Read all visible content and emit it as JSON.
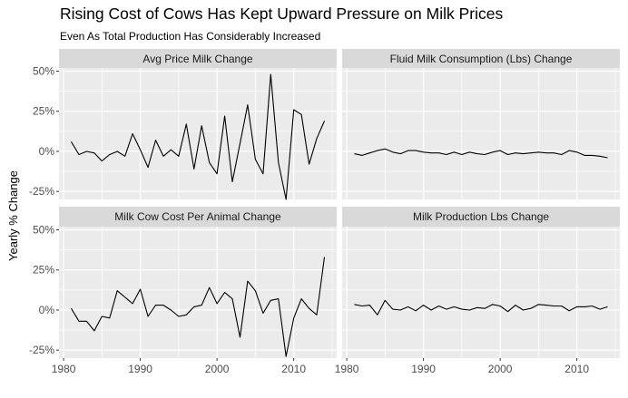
{
  "title": "Rising Cost of Cows Has Kept Upward Pressure on Milk Prices",
  "subtitle": "Even As Total Production Has Considerably Increased",
  "ylabel": "Yearly % Change",
  "chart_data": {
    "type": "line",
    "facet_layout": "2x2 grid, shared axes",
    "x": [
      1981,
      1982,
      1983,
      1984,
      1985,
      1986,
      1987,
      1988,
      1989,
      1990,
      1991,
      1992,
      1993,
      1994,
      1995,
      1996,
      1997,
      1998,
      1999,
      2000,
      2001,
      2002,
      2003,
      2004,
      2005,
      2006,
      2007,
      2008,
      2009,
      2010,
      2011,
      2012,
      2013,
      2014
    ],
    "x_ticks": [
      1980,
      1990,
      2000,
      2010
    ],
    "x_tick_labels": [
      "1980",
      "1990",
      "2000",
      "2010"
    ],
    "xlim": [
      1979.4,
      2015.6
    ],
    "y_ticks": [
      -0.25,
      0,
      0.25,
      0.5
    ],
    "y_tick_labels": [
      "-25%",
      "0%",
      "25%",
      "50%"
    ],
    "ylim": [
      -0.3,
      0.52
    ],
    "grid": true,
    "line_color": "#000000",
    "panel_background": "#ebebeb",
    "strip_background": "#d9d9d9",
    "facets": [
      {
        "name": "Avg Price Milk Change",
        "values": [
          0.06,
          -0.02,
          0.0,
          -0.01,
          -0.06,
          -0.02,
          0.0,
          -0.03,
          0.11,
          0.01,
          -0.1,
          0.07,
          -0.03,
          0.01,
          -0.03,
          0.17,
          -0.11,
          0.16,
          -0.07,
          -0.14,
          0.22,
          -0.19,
          0.05,
          0.29,
          -0.05,
          -0.14,
          0.48,
          -0.07,
          -0.3,
          0.26,
          0.23,
          -0.08,
          0.08,
          0.19
        ]
      },
      {
        "name": "Fluid Milk Consumption (Lbs) Change",
        "values": [
          -0.015,
          -0.025,
          -0.01,
          0.005,
          0.015,
          -0.005,
          -0.015,
          0.005,
          0.005,
          -0.005,
          -0.01,
          -0.01,
          -0.02,
          -0.005,
          -0.02,
          -0.005,
          -0.015,
          -0.02,
          -0.005,
          0.005,
          -0.02,
          -0.01,
          -0.015,
          -0.01,
          -0.005,
          -0.01,
          -0.01,
          -0.02,
          0.005,
          -0.005,
          -0.025,
          -0.025,
          -0.03,
          -0.04
        ]
      },
      {
        "name": "Milk Cow Cost Per Animal Change",
        "values": [
          0.01,
          -0.07,
          -0.07,
          -0.13,
          -0.04,
          -0.05,
          0.12,
          0.08,
          0.04,
          0.13,
          -0.04,
          0.03,
          0.03,
          0.0,
          -0.04,
          -0.03,
          0.02,
          0.03,
          0.14,
          0.04,
          0.11,
          0.07,
          -0.17,
          0.18,
          0.12,
          -0.02,
          0.06,
          0.07,
          -0.29,
          -0.05,
          0.07,
          0.01,
          -0.03,
          0.33
        ]
      },
      {
        "name": "Milk Production Lbs Change",
        "values": [
          0.035,
          0.025,
          0.03,
          -0.03,
          0.06,
          0.005,
          0.0,
          0.02,
          -0.005,
          0.03,
          0.0,
          0.025,
          0.005,
          0.02,
          0.005,
          0.0,
          0.015,
          0.01,
          0.035,
          0.025,
          -0.01,
          0.03,
          0.0,
          0.01,
          0.035,
          0.03,
          0.025,
          0.025,
          -0.005,
          0.02,
          0.02,
          0.025,
          0.005,
          0.02
        ]
      }
    ]
  }
}
